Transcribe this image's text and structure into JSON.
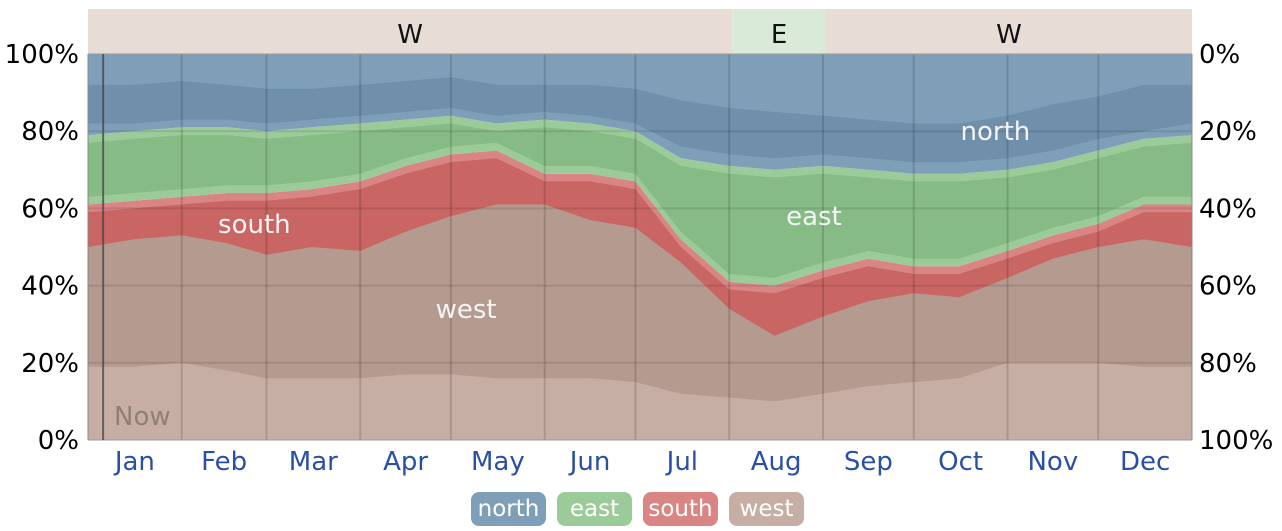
{
  "chart_data": {
    "type": "area",
    "stacked": "percent",
    "months": [
      "Jan",
      "Feb",
      "Mar",
      "Apr",
      "May",
      "Jun",
      "Jul",
      "Aug",
      "Sep",
      "Oct",
      "Nov",
      "Dec"
    ],
    "y_left_ticks": [
      "0%",
      "20%",
      "40%",
      "60%",
      "80%",
      "100%"
    ],
    "y_right_ticks": [
      "100%",
      "80%",
      "60%",
      "40%",
      "20%",
      "0%"
    ],
    "series_order": [
      "west",
      "south",
      "east",
      "north"
    ],
    "series_labels": {
      "north": "north",
      "east": "east",
      "south": "south",
      "west": "west"
    },
    "x_day": [
      0,
      15,
      31,
      46,
      59,
      74,
      90,
      105,
      120,
      135,
      151,
      166,
      181,
      196,
      212,
      227,
      243,
      258,
      273,
      288,
      304,
      319,
      334,
      349,
      365
    ],
    "boundaries": {
      "west_south": [
        49,
        51,
        52,
        50,
        47,
        49,
        48,
        53,
        57,
        60,
        60,
        56,
        54,
        45,
        33,
        26,
        31,
        35,
        37,
        36,
        41,
        46,
        49,
        51,
        49
      ],
      "south_east": [
        61,
        62,
        63,
        64,
        64,
        65,
        67,
        71,
        74,
        75,
        69,
        69,
        67,
        52,
        41,
        40,
        44,
        47,
        45,
        45,
        49,
        53,
        56,
        61,
        61
      ],
      "east_north": [
        79,
        80,
        81,
        81,
        80,
        81,
        82,
        83,
        84,
        82,
        83,
        82,
        80,
        73,
        71,
        70,
        71,
        70,
        69,
        69,
        70,
        72,
        75,
        78,
        79
      ]
    },
    "inner_band_bounds": {
      "west_lo": [
        19,
        19,
        20,
        18,
        16,
        16,
        16,
        17,
        17,
        16,
        16,
        16,
        15,
        12,
        11,
        10,
        12,
        14,
        15,
        16,
        20,
        20,
        20,
        19,
        19
      ],
      "west_hi": [
        52,
        53,
        54,
        52,
        49,
        51,
        50,
        55,
        60,
        63,
        63,
        59,
        57,
        48,
        35,
        28,
        33,
        37,
        39,
        38,
        43,
        48,
        51,
        53,
        52
      ],
      "south_lo": [
        50,
        52,
        53,
        51,
        48,
        50,
        49,
        54,
        58,
        61,
        61,
        57,
        55,
        46,
        34,
        27,
        32,
        36,
        38,
        37,
        42,
        47,
        50,
        52,
        50
      ],
      "south_hi": [
        59,
        60,
        61,
        62,
        62,
        63,
        65,
        69,
        72,
        73,
        67,
        67,
        65,
        50,
        39,
        38,
        42,
        45,
        43,
        43,
        47,
        51,
        54,
        59,
        59
      ],
      "east_lo": [
        63,
        64,
        65,
        66,
        66,
        67,
        69,
        73,
        76,
        77,
        71,
        71,
        69,
        54,
        43,
        42,
        46,
        49,
        47,
        47,
        51,
        55,
        58,
        63,
        63
      ],
      "east_hi": [
        77,
        78,
        79,
        79,
        78,
        79,
        80,
        81,
        82,
        80,
        81,
        80,
        78,
        71,
        69,
        68,
        69,
        68,
        67,
        67,
        68,
        70,
        73,
        76,
        77
      ],
      "north_lo": [
        82,
        82,
        83,
        83,
        82,
        83,
        84,
        85,
        86,
        84,
        85,
        84,
        82,
        76,
        74,
        73,
        74,
        73,
        72,
        72,
        73,
        75,
        78,
        80,
        82
      ],
      "north_hi": [
        92,
        92,
        93,
        92,
        91,
        91,
        92,
        93,
        94,
        92,
        92,
        92,
        91,
        88,
        86,
        85,
        84,
        83,
        82,
        82,
        84,
        87,
        89,
        92,
        92
      ]
    },
    "colors": {
      "north": "#7f9fb8",
      "north_inner": "#6f8fab",
      "east": "#9ccb9a",
      "east_inner": "#86bb85",
      "south": "#d88584",
      "south_inner": "#c96563",
      "west": "#c6aea4",
      "west_inner": "#b49a8f",
      "top_band": "#e7dcd6",
      "top_band_east": "#d9ead8",
      "month_text": "#2a4fa6",
      "now_line": "#444444"
    },
    "top_band": [
      {
        "label": "W",
        "start_day": 0,
        "end_day": 213
      },
      {
        "label": "E",
        "start_day": 213,
        "end_day": 244
      },
      {
        "label": "W",
        "start_day": 244,
        "end_day": 365
      }
    ],
    "area_labels": [
      {
        "series": "north",
        "text": "north",
        "day": 300,
        "pct": 80
      },
      {
        "series": "east",
        "text": "east",
        "day": 240,
        "pct": 58
      },
      {
        "series": "south",
        "text": "south",
        "day": 55,
        "pct": 56
      },
      {
        "series": "west",
        "text": "west",
        "day": 125,
        "pct": 34
      }
    ],
    "now_marker": {
      "day": 5,
      "label": "Now"
    },
    "ylim": [
      0,
      100
    ],
    "legend_position": "bottom-center"
  }
}
